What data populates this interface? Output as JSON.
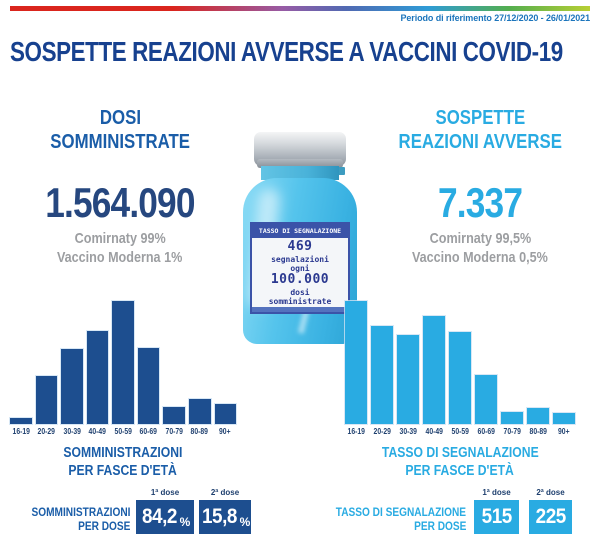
{
  "meta": {
    "period": "Periodo di riferimento 27/12/2020 - 26/01/2021"
  },
  "title": "SOSPETTE REAZIONI AVVERSE A VACCINI COVID-19",
  "colors": {
    "title_navy": "#17418F",
    "medium_blue": "#1A5DA8",
    "light_blue": "#29ABE2",
    "number_navy": "#26477F",
    "bar_dark_blue": "#1D4E8F",
    "gray_text": "#9C9EA1",
    "period_blue": "#1C75BC",
    "vial_label_band": "#3B53A8",
    "vial_label_text": "#2B3990"
  },
  "doses_panel": {
    "header_line1": "DOSI",
    "header_line2": "SOMMINISTRATE",
    "total": "1.564.090",
    "comirnaty": "Comirnaty 99%",
    "moderna": "Vaccino Moderna 1%"
  },
  "reactions_panel": {
    "header_line1": "SOSPETTE",
    "header_line2": "REAZIONI AVVERSE",
    "total": "7.337",
    "comirnaty": "Comirnaty 99,5%",
    "moderna": "Vaccino Moderna 0,5%"
  },
  "vial_label": {
    "band_title": "TASSO DI SEGNALAZIONE",
    "rate_value": "469",
    "line_segnalazioni": "segnalazioni",
    "line_ogni": "ogni",
    "per_value": "100.000",
    "line_dosi": "dosi",
    "line_somministrate": "somministrate"
  },
  "chart_data": [
    {
      "type": "bar",
      "title": "SOMMINISTRAZIONI PER FASCE D'ETÀ",
      "categories": [
        "16-19",
        "20-29",
        "30-39",
        "40-49",
        "50-59",
        "60-69",
        "70-79",
        "80-89",
        "90+"
      ],
      "values": [
        4.5,
        39,
        61,
        76,
        100,
        62,
        14,
        20,
        16
      ],
      "value_unit": "percent of tallest bar (estimated from pixels; no y-axis shown)",
      "bar_color": "#1D4E8F",
      "xlabel": "fasce d'età",
      "ylabel": "",
      "grid": false,
      "legend": false
    },
    {
      "type": "bar",
      "title": "TASSO DI SEGNALAZIONE PER FASCE D'ETÀ",
      "categories": [
        "16-19",
        "20-29",
        "30-39",
        "40-49",
        "50-59",
        "60-69",
        "70-79",
        "80-89",
        "90+"
      ],
      "values": [
        100,
        80,
        72,
        88,
        75,
        40,
        10,
        13,
        9
      ],
      "value_unit": "percent of tallest bar (estimated from pixels; no y-axis shown)",
      "bar_color": "#29ABE2",
      "xlabel": "fasce d'età",
      "ylabel": "",
      "grid": false,
      "legend": false
    }
  ],
  "caption_left": {
    "line1": "SOMMINISTRAZIONI",
    "line2": "PER FASCE D'ETÀ"
  },
  "caption_right": {
    "line1": "TASSO DI SEGNALAZIONE",
    "line2": "PER FASCE D'ETÀ"
  },
  "dose_left": {
    "label_line1": "SOMMINISTRAZIONI",
    "label_line2": "PER DOSE",
    "dose1_label": "1ª dose",
    "dose2_label": "2ª dose",
    "dose1_value": "84,2",
    "dose1_suffix": "%",
    "dose2_value": "15,8",
    "dose2_suffix": "%"
  },
  "dose_right": {
    "label_line1": "TASSO DI SEGNALAZIONE",
    "label_line2": "PER DOSE",
    "dose1_label": "1ª dose",
    "dose2_label": "2ª dose",
    "dose1_value": "515",
    "dose2_value": "225"
  }
}
